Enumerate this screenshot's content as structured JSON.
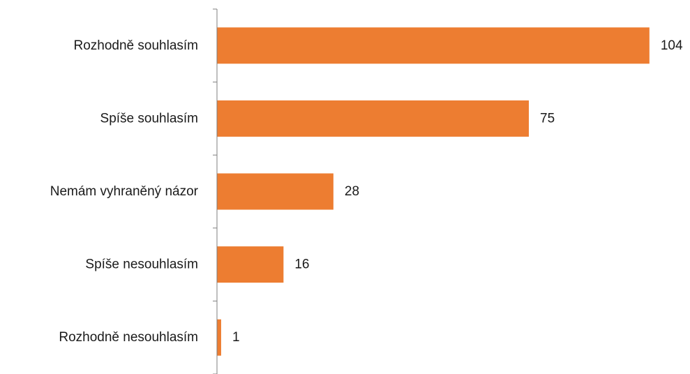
{
  "chart_data": {
    "type": "bar",
    "orientation": "horizontal",
    "categories": [
      "Rozhodně souhlasím",
      "Spíše souhlasím",
      "Nemám vyhraněný názor",
      "Spíše nesouhlasím",
      "Rozhodně nesouhlasím"
    ],
    "values": [
      104,
      75,
      28,
      16,
      1
    ],
    "title": "",
    "xlabel": "",
    "ylabel": "",
    "xlim": [
      0,
      110
    ],
    "grid": false,
    "legend": "none",
    "data_labels": true,
    "bar_color": "#ED7D31"
  }
}
